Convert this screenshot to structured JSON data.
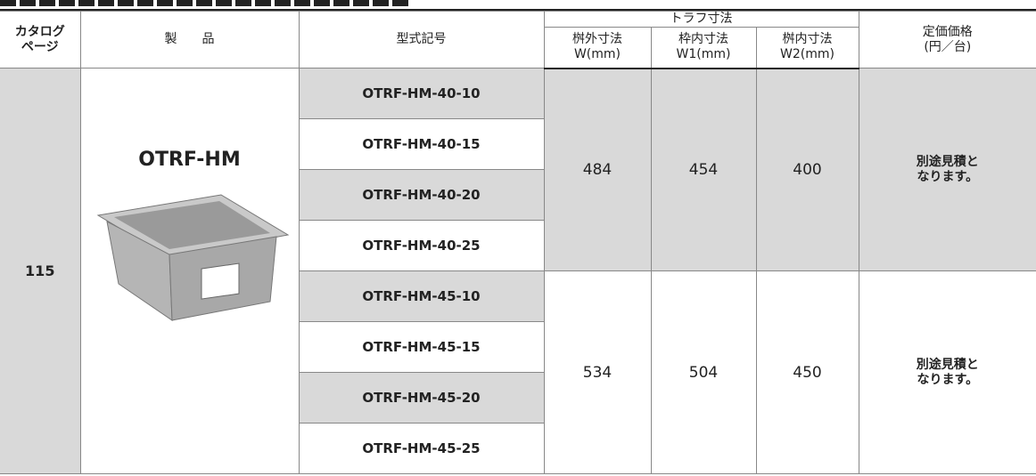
{
  "header": {
    "catalog_page": "カタログ\nページ",
    "product": "製　　品",
    "model": "型式記号",
    "trough": "トラフ寸法",
    "dims": [
      {
        "label": "桝外寸法",
        "unit": "W(mm)"
      },
      {
        "label": "枠内寸法",
        "unit": "W1(mm)"
      },
      {
        "label": "桝内寸法",
        "unit": "W2(mm)"
      }
    ],
    "price": "定価価格",
    "price_unit": "(円／台)"
  },
  "body": {
    "page": "115",
    "product": "OTRF-HM",
    "models": [
      "OTRF-HM-40-10",
      "OTRF-HM-40-15",
      "OTRF-HM-40-20",
      "OTRF-HM-40-25",
      "OTRF-HM-45-10",
      "OTRF-HM-45-15",
      "OTRF-HM-45-20",
      "OTRF-HM-45-25"
    ],
    "groups": [
      {
        "dims": [
          "484",
          "454",
          "400"
        ],
        "price": "別途見積と\nなります。"
      },
      {
        "dims": [
          "534",
          "504",
          "450"
        ],
        "price": "別途見積と\nなります。"
      }
    ]
  }
}
